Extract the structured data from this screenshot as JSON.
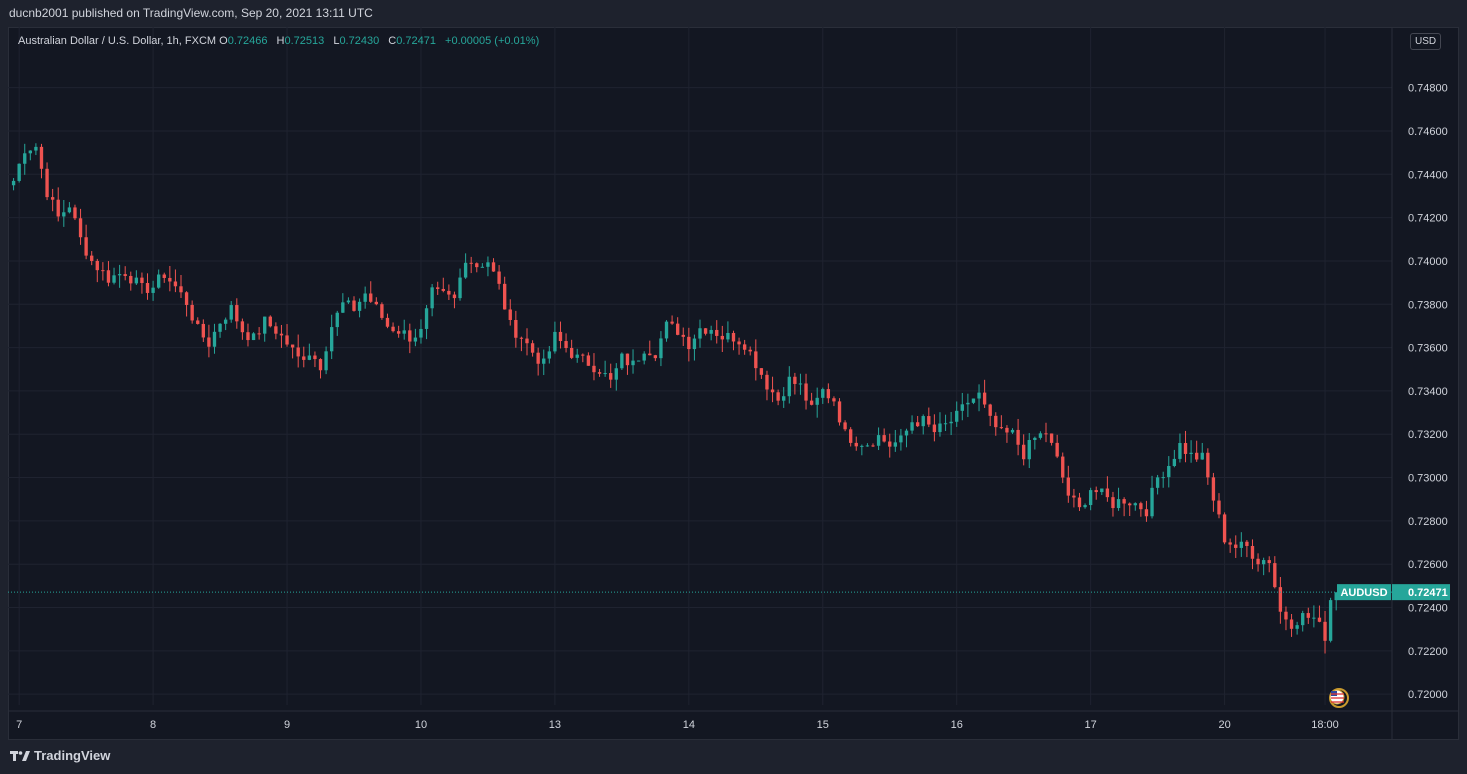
{
  "header": {
    "published_text": "ducnb2001 published on TradingView.com, Sep 20, 2021 13:11 UTC"
  },
  "legend": {
    "symbol": "Australian Dollar / U.S. Dollar, 1h, FXCM",
    "o_label": "O",
    "o_value": "0.72466",
    "h_label": "H",
    "h_value": "0.72513",
    "l_label": "L",
    "l_value": "0.72430",
    "c_label": "C",
    "c_value": "0.72471",
    "change": "+0.00005 (+0.01%)"
  },
  "currency": "USD",
  "footer": {
    "brand": "TradingView"
  },
  "colors": {
    "up": "#26a69a",
    "down": "#ef5350",
    "background": "#131722",
    "grid": "#1f2330",
    "text": "#d1d4dc"
  },
  "chart_data": {
    "type": "candlestick",
    "title": "Australian Dollar / U.S. Dollar, 1h, FXCM",
    "ylim": [
      0.7195,
      0.7508
    ],
    "y_ticks": [
      "0.74800",
      "0.74600",
      "0.74400",
      "0.74200",
      "0.74000",
      "0.73800",
      "0.73600",
      "0.73400",
      "0.73200",
      "0.73000",
      "0.72800",
      "0.72600",
      "0.72400",
      "0.72200",
      "0.72000"
    ],
    "x_ticks": [
      "7",
      "8",
      "9",
      "10",
      "13",
      "14",
      "15",
      "16",
      "17",
      "20",
      "18:00"
    ],
    "x_tick_hours": [
      0,
      24,
      48,
      72,
      96,
      120,
      144,
      168,
      192,
      216,
      234
    ],
    "x_range_hours": [
      -2,
      246
    ],
    "last_price": {
      "label": "AUDUSD",
      "value": "0.72471",
      "price": 0.72471
    },
    "grid": true,
    "keypoints": [
      [
        -1,
        0.7437
      ],
      [
        1,
        0.7452
      ],
      [
        3,
        0.7453
      ],
      [
        5,
        0.7432
      ],
      [
        7,
        0.742
      ],
      [
        9,
        0.7426
      ],
      [
        11,
        0.741
      ],
      [
        13,
        0.74
      ],
      [
        16,
        0.7392
      ],
      [
        19,
        0.7395
      ],
      [
        22,
        0.7387
      ],
      [
        24,
        0.7388
      ],
      [
        26,
        0.7394
      ],
      [
        28,
        0.7388
      ],
      [
        30,
        0.7381
      ],
      [
        32,
        0.7368
      ],
      [
        34,
        0.7362
      ],
      [
        36,
        0.7372
      ],
      [
        38,
        0.7378
      ],
      [
        40,
        0.7368
      ],
      [
        42,
        0.7364
      ],
      [
        44,
        0.7372
      ],
      [
        46,
        0.7368
      ],
      [
        48,
        0.7362
      ],
      [
        50,
        0.7355
      ],
      [
        52,
        0.7358
      ],
      [
        54,
        0.7352
      ],
      [
        56,
        0.737
      ],
      [
        58,
        0.738
      ],
      [
        60,
        0.7378
      ],
      [
        62,
        0.7385
      ],
      [
        64,
        0.7378
      ],
      [
        66,
        0.737
      ],
      [
        68,
        0.7368
      ],
      [
        70,
        0.7365
      ],
      [
        72,
        0.7367
      ],
      [
        74,
        0.7385
      ],
      [
        76,
        0.7384
      ],
      [
        78,
        0.7382
      ],
      [
        80,
        0.7402
      ],
      [
        82,
        0.7398
      ],
      [
        84,
        0.74
      ],
      [
        86,
        0.7388
      ],
      [
        88,
        0.737
      ],
      [
        90,
        0.7365
      ],
      [
        92,
        0.7358
      ],
      [
        94,
        0.7352
      ],
      [
        96,
        0.7365
      ],
      [
        98,
        0.736
      ],
      [
        100,
        0.7355
      ],
      [
        102,
        0.7353
      ],
      [
        104,
        0.735
      ],
      [
        106,
        0.7344
      ],
      [
        108,
        0.7355
      ],
      [
        110,
        0.7352
      ],
      [
        112,
        0.736
      ],
      [
        114,
        0.7358
      ],
      [
        116,
        0.737
      ],
      [
        118,
        0.7368
      ],
      [
        120,
        0.7362
      ],
      [
        122,
        0.7369
      ],
      [
        124,
        0.7369
      ],
      [
        126,
        0.7365
      ],
      [
        128,
        0.7365
      ],
      [
        130,
        0.7362
      ],
      [
        132,
        0.7353
      ],
      [
        134,
        0.7343
      ],
      [
        136,
        0.7336
      ],
      [
        138,
        0.7345
      ],
      [
        140,
        0.7342
      ],
      [
        142,
        0.7331
      ],
      [
        144,
        0.734
      ],
      [
        146,
        0.7336
      ],
      [
        148,
        0.732
      ],
      [
        150,
        0.7317
      ],
      [
        152,
        0.7316
      ],
      [
        154,
        0.7319
      ],
      [
        156,
        0.7315
      ],
      [
        158,
        0.7317
      ],
      [
        160,
        0.7326
      ],
      [
        162,
        0.7326
      ],
      [
        164,
        0.7321
      ],
      [
        166,
        0.7324
      ],
      [
        168,
        0.7328
      ],
      [
        170,
        0.7335
      ],
      [
        172,
        0.7338
      ],
      [
        174,
        0.7326
      ],
      [
        176,
        0.732
      ],
      [
        178,
        0.732
      ],
      [
        180,
        0.7311
      ],
      [
        182,
        0.7318
      ],
      [
        184,
        0.7321
      ],
      [
        186,
        0.7308
      ],
      [
        188,
        0.7292
      ],
      [
        190,
        0.7285
      ],
      [
        192,
        0.7295
      ],
      [
        194,
        0.7292
      ],
      [
        196,
        0.7288
      ],
      [
        198,
        0.729
      ],
      [
        200,
        0.7288
      ],
      [
        202,
        0.7285
      ],
      [
        204,
        0.73
      ],
      [
        206,
        0.7306
      ],
      [
        208,
        0.7315
      ],
      [
        210,
        0.731
      ],
      [
        212,
        0.7309
      ],
      [
        214,
        0.729
      ],
      [
        216,
        0.7272
      ],
      [
        218,
        0.7268
      ],
      [
        220,
        0.7268
      ],
      [
        222,
        0.7262
      ],
      [
        224,
        0.7262
      ],
      [
        226,
        0.7238
      ],
      [
        228,
        0.7233
      ],
      [
        230,
        0.7236
      ],
      [
        232,
        0.7235
      ],
      [
        234,
        0.7227
      ],
      [
        235,
        0.7244
      ],
      [
        236,
        0.7247
      ]
    ]
  }
}
